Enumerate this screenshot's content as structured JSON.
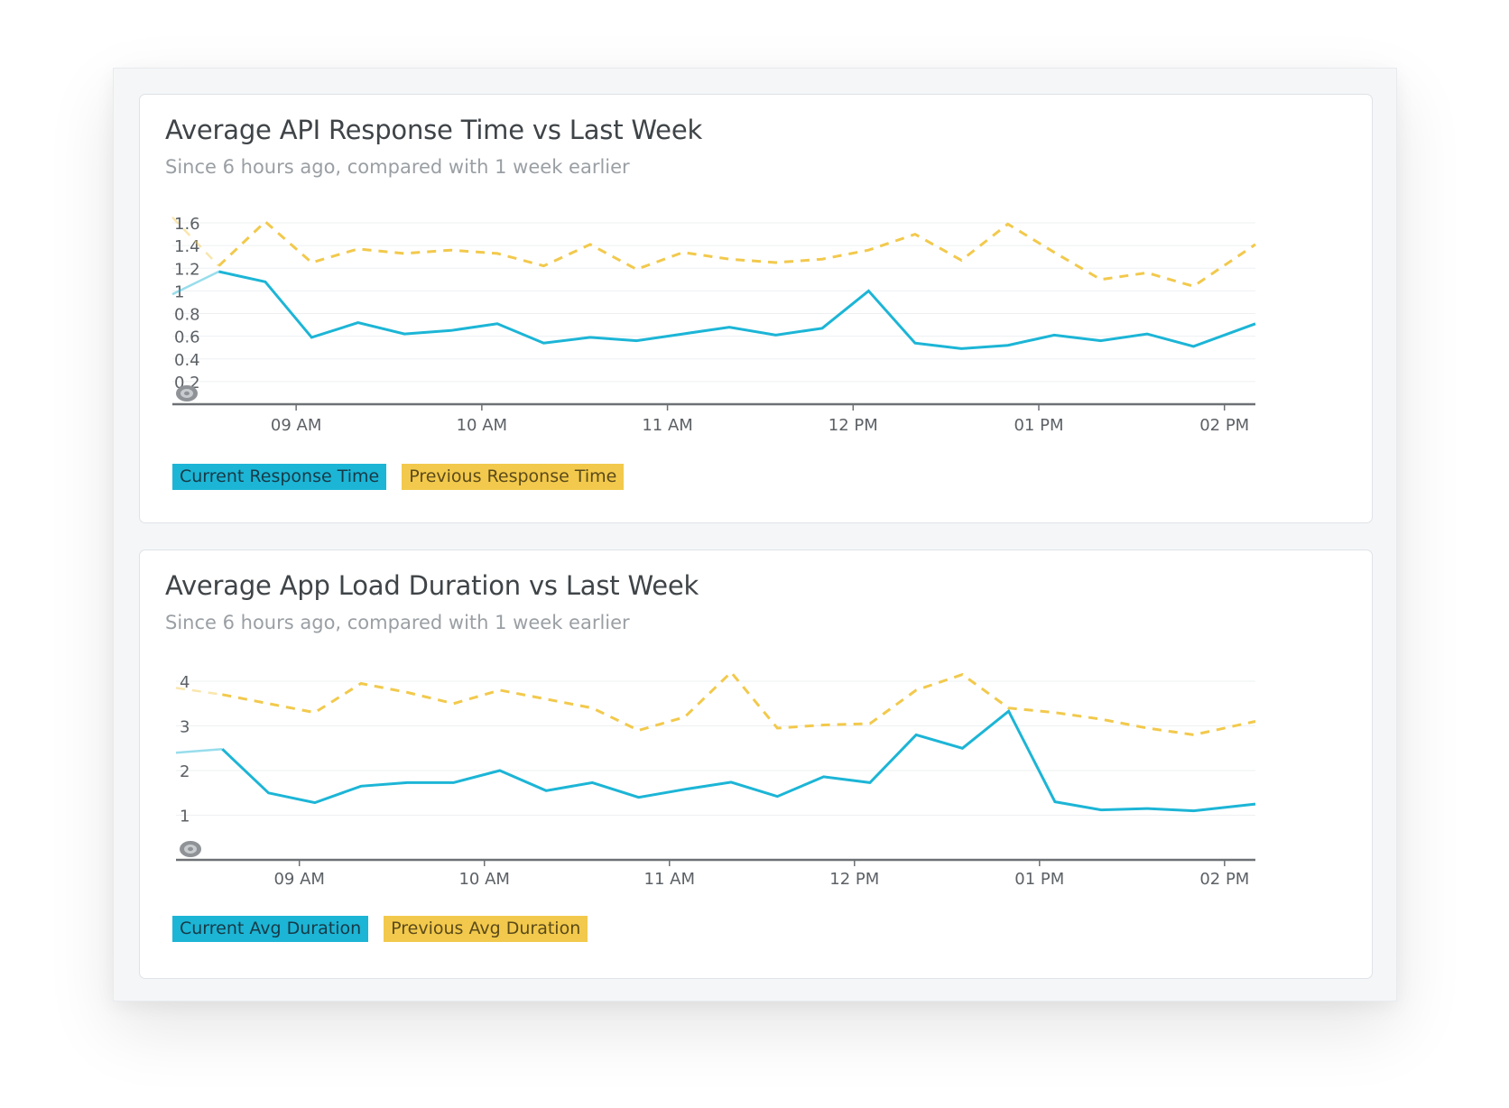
{
  "colors": {
    "current": "#1cb5d6",
    "previous": "#f2c94c",
    "grid": "#eef0f2",
    "axis": "#6d7175",
    "tick_text": "#5c6166"
  },
  "icons": {
    "reset_zoom": "reset-zoom-icon"
  },
  "chart_data": [
    {
      "type": "line",
      "title": "Average API Response Time vs Last Week",
      "subtitle": "Since 6 hours ago, compared with 1 week earlier",
      "x_ticks": [
        "09 AM",
        "10 AM",
        "11 AM",
        "12 PM",
        "01 PM",
        "02 PM"
      ],
      "x_range": [
        "08:20",
        "14:10"
      ],
      "ylim": [
        0,
        1.6
      ],
      "y_ticks": [
        "0.2",
        "0.4",
        "0.6",
        "0.8",
        "1",
        "1.2",
        "1.4",
        "1.6"
      ],
      "grid": true,
      "legend_position": "bottom-left",
      "x": [
        "08:20",
        "08:35",
        "08:50",
        "09:05",
        "09:20",
        "09:35",
        "09:50",
        "10:05",
        "10:20",
        "10:35",
        "10:50",
        "11:05",
        "11:20",
        "11:35",
        "11:50",
        "12:05",
        "12:20",
        "12:35",
        "12:50",
        "13:05",
        "13:20",
        "13:35",
        "13:50",
        "14:10"
      ],
      "series": [
        {
          "name": "Current Response Time",
          "style": "solid",
          "values": [
            0.97,
            1.17,
            1.08,
            0.59,
            0.72,
            0.62,
            0.65,
            0.71,
            0.54,
            0.59,
            0.56,
            0.62,
            0.68,
            0.61,
            0.67,
            1.0,
            0.54,
            0.49,
            0.52,
            0.61,
            0.56,
            0.62,
            0.51,
            0.71
          ]
        },
        {
          "name": "Previous Response Time",
          "style": "dashed",
          "values": [
            1.65,
            1.22,
            1.61,
            1.25,
            1.37,
            1.33,
            1.36,
            1.33,
            1.22,
            1.41,
            1.19,
            1.34,
            1.28,
            1.25,
            1.28,
            1.36,
            1.5,
            1.27,
            1.59,
            1.34,
            1.1,
            1.16,
            1.04,
            1.41
          ]
        }
      ]
    },
    {
      "type": "line",
      "title": "Average App Load Duration vs Last Week",
      "subtitle": "Since 6 hours ago, compared with 1 week earlier",
      "x_ticks": [
        "09 AM",
        "10 AM",
        "11 AM",
        "12 PM",
        "01 PM",
        "02 PM"
      ],
      "x_range": [
        "08:20",
        "14:10"
      ],
      "ylim": [
        0,
        4
      ],
      "y_ticks": [
        "1",
        "2",
        "3",
        "4"
      ],
      "grid": true,
      "legend_position": "bottom-left",
      "x": [
        "08:20",
        "08:35",
        "08:50",
        "09:05",
        "09:20",
        "09:35",
        "09:50",
        "10:05",
        "10:20",
        "10:35",
        "10:50",
        "11:05",
        "11:20",
        "11:35",
        "11:50",
        "12:05",
        "12:20",
        "12:35",
        "12:50",
        "13:05",
        "13:20",
        "13:35",
        "13:50",
        "14:10"
      ],
      "series": [
        {
          "name": "Current Avg Duration",
          "style": "solid",
          "values": [
            2.4,
            2.48,
            1.5,
            1.28,
            1.65,
            1.73,
            1.73,
            2.0,
            1.55,
            1.73,
            1.4,
            1.58,
            1.74,
            1.42,
            1.86,
            1.73,
            2.8,
            2.5,
            3.33,
            1.3,
            1.12,
            1.15,
            1.1,
            1.25
          ]
        },
        {
          "name": "Previous Avg Duration",
          "style": "dashed",
          "values": [
            3.85,
            3.7,
            3.5,
            3.3,
            3.95,
            3.75,
            3.5,
            3.8,
            3.6,
            3.4,
            2.9,
            3.2,
            4.2,
            2.95,
            3.02,
            3.05,
            3.8,
            4.15,
            3.4,
            3.3,
            3.15,
            2.95,
            2.8,
            3.1
          ]
        }
      ]
    }
  ]
}
